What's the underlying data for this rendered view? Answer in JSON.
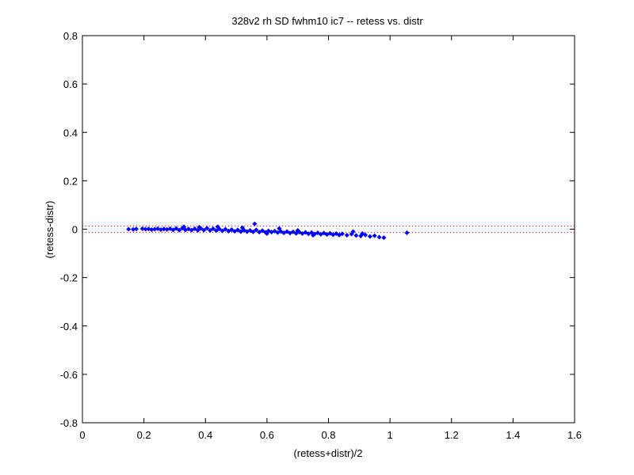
{
  "chart_data": {
    "type": "scatter",
    "title": "328v2 rh SD fwhm10 ic7 -- retess vs. distr",
    "xlabel": "(retess+distr)/2",
    "ylabel": "(retess-distr)",
    "xlim": [
      0,
      1.6
    ],
    "ylim": [
      -0.8,
      0.8
    ],
    "xticks": [
      0,
      0.2,
      0.4,
      0.6,
      0.8,
      1,
      1.2,
      1.4,
      1.6
    ],
    "xtick_labels": [
      "0",
      "0.2",
      "0.4",
      "0.6",
      "0.8",
      "1",
      "1.2",
      "1.4",
      "1.6"
    ],
    "yticks": [
      0.8,
      0.6,
      0.4,
      0.2,
      0,
      -0.2,
      -0.4,
      -0.6,
      -0.8
    ],
    "ytick_labels": [
      "0.8",
      "0.6",
      "0.4",
      "0.2",
      "0",
      "-0.2",
      "-0.4",
      "-0.6",
      "-0.8"
    ],
    "grid": false,
    "marker_color": "#0000ff",
    "reference_lines": {
      "y_values": [
        0.013,
        -0.013
      ],
      "color": "#ff0000",
      "style": "dotted"
    },
    "points": [
      [
        0.15,
        0.0
      ],
      [
        0.165,
        -0.001
      ],
      [
        0.175,
        0.001
      ],
      [
        0.195,
        0.002
      ],
      [
        0.205,
        0.0
      ],
      [
        0.215,
        0.001
      ],
      [
        0.225,
        -0.002
      ],
      [
        0.235,
        0.0
      ],
      [
        0.245,
        0.002
      ],
      [
        0.255,
        -0.002
      ],
      [
        0.265,
        0.001
      ],
      [
        0.275,
        -0.001
      ],
      [
        0.285,
        0.002
      ],
      [
        0.295,
        -0.003
      ],
      [
        0.305,
        0.003
      ],
      [
        0.315,
        -0.004
      ],
      [
        0.325,
        0.004
      ],
      [
        0.335,
        -0.003
      ],
      [
        0.345,
        0.001
      ],
      [
        0.355,
        -0.004
      ],
      [
        0.365,
        0.002
      ],
      [
        0.375,
        -0.005
      ],
      [
        0.385,
        0.003
      ],
      [
        0.395,
        -0.004
      ],
      [
        0.405,
        0.004
      ],
      [
        0.415,
        -0.005
      ],
      [
        0.425,
        0.002
      ],
      [
        0.435,
        -0.006
      ],
      [
        0.445,
        0.001
      ],
      [
        0.455,
        -0.007
      ],
      [
        0.465,
        0.0
      ],
      [
        0.475,
        -0.008
      ],
      [
        0.485,
        -0.002
      ],
      [
        0.495,
        -0.009
      ],
      [
        0.505,
        -0.003
      ],
      [
        0.515,
        -0.01
      ],
      [
        0.525,
        -0.004
      ],
      [
        0.535,
        -0.01
      ],
      [
        0.545,
        -0.005
      ],
      [
        0.555,
        -0.011
      ],
      [
        0.565,
        -0.003
      ],
      [
        0.575,
        -0.012
      ],
      [
        0.585,
        -0.006
      ],
      [
        0.595,
        -0.013
      ],
      [
        0.605,
        -0.007
      ],
      [
        0.615,
        -0.012
      ],
      [
        0.625,
        -0.008
      ],
      [
        0.635,
        -0.014
      ],
      [
        0.645,
        -0.009
      ],
      [
        0.655,
        -0.015
      ],
      [
        0.665,
        -0.01
      ],
      [
        0.675,
        -0.016
      ],
      [
        0.685,
        -0.011
      ],
      [
        0.695,
        -0.017
      ],
      [
        0.705,
        -0.012
      ],
      [
        0.715,
        -0.018
      ],
      [
        0.725,
        -0.013
      ],
      [
        0.735,
        -0.019
      ],
      [
        0.745,
        -0.014
      ],
      [
        0.755,
        -0.02
      ],
      [
        0.765,
        -0.015
      ],
      [
        0.775,
        -0.021
      ],
      [
        0.785,
        -0.016
      ],
      [
        0.795,
        -0.022
      ],
      [
        0.805,
        -0.017
      ],
      [
        0.815,
        -0.023
      ],
      [
        0.825,
        -0.018
      ],
      [
        0.835,
        -0.024
      ],
      [
        0.845,
        -0.019
      ],
      [
        0.86,
        -0.025
      ],
      [
        0.875,
        -0.02
      ],
      [
        0.89,
        -0.026
      ],
      [
        0.905,
        -0.028
      ],
      [
        0.92,
        -0.024
      ],
      [
        0.935,
        -0.03
      ],
      [
        0.95,
        -0.027
      ],
      [
        0.965,
        -0.033
      ],
      [
        0.98,
        -0.035
      ],
      [
        0.44,
        0.01
      ],
      [
        0.56,
        0.022
      ],
      [
        0.6,
        -0.018
      ],
      [
        0.64,
        0.003
      ],
      [
        0.52,
        0.006
      ],
      [
        0.38,
        0.008
      ],
      [
        0.33,
        0.01
      ],
      [
        0.7,
        -0.005
      ],
      [
        0.75,
        -0.025
      ],
      [
        0.88,
        -0.01
      ],
      [
        0.91,
        -0.018
      ],
      [
        1.055,
        -0.015
      ]
    ]
  }
}
